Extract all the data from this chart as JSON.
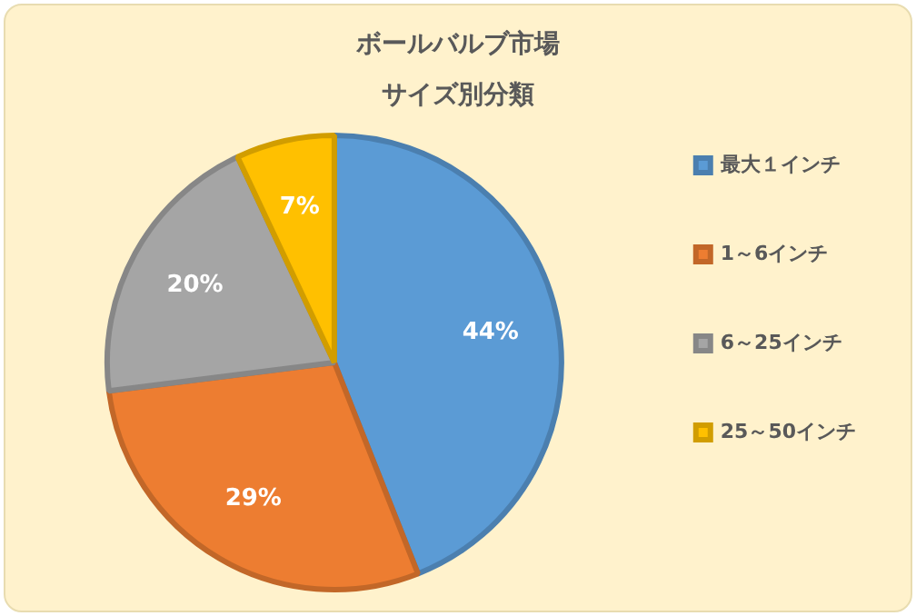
{
  "chart_data": {
    "type": "pie",
    "title": "ボールバルブ市場",
    "subtitle": "サイズ別分類",
    "categories": [
      "最大１インチ",
      "1～6インチ",
      "6～25インチ",
      "25～50インチ"
    ],
    "values": [
      44,
      29,
      20,
      7
    ],
    "colors": [
      "#5b9bd5",
      "#ed7d31",
      "#a5a5a5",
      "#ffc000"
    ],
    "value_labels": [
      "44%",
      "29%",
      "20%",
      "7%"
    ],
    "legend": "right"
  }
}
